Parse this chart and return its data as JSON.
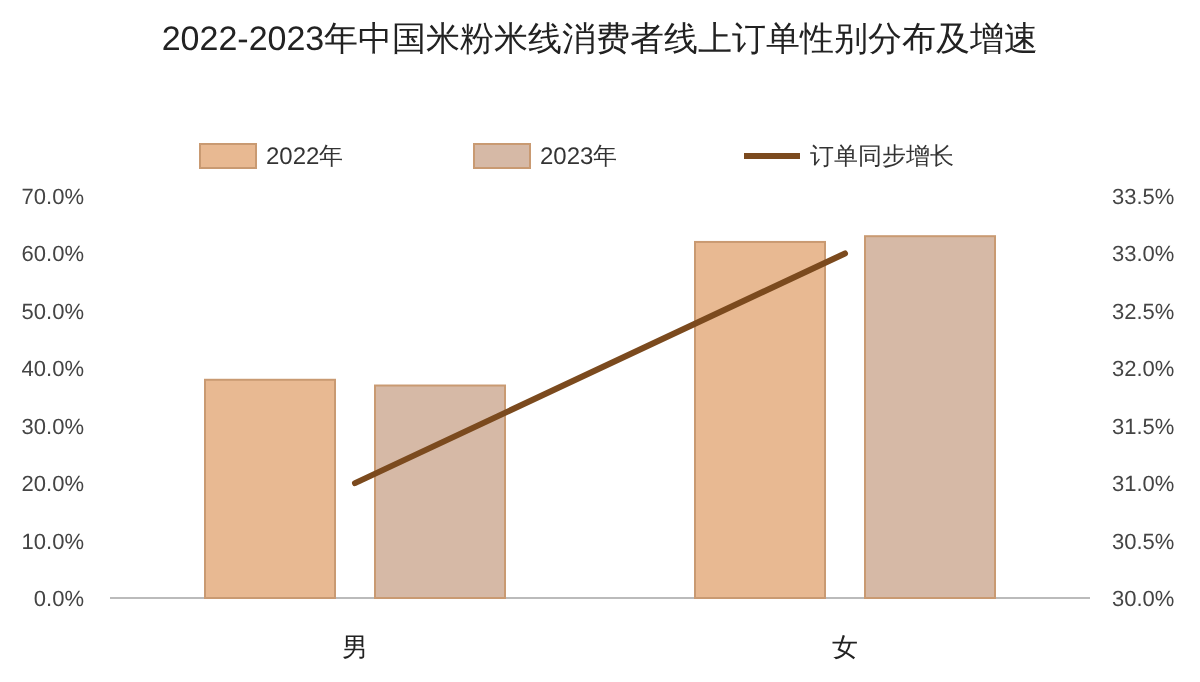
{
  "chart_data": {
    "type": "bar",
    "title": "2022-2023年中国米粉米线消费者线上订单性别分布及增速",
    "categories": [
      "男",
      "女"
    ],
    "series": [
      {
        "name": "2022年",
        "color": "#e8b992",
        "values": [
          38,
          62
        ]
      },
      {
        "name": "2023年",
        "color": "#d6b9a6",
        "values": [
          37,
          63
        ]
      },
      {
        "name": "订单同步增长",
        "type": "line",
        "axis": "y2",
        "color": "#7b4a1e",
        "values": [
          31.0,
          33.0
        ]
      }
    ],
    "ylim": [
      0,
      70
    ],
    "yticks": [
      {
        "value": 0,
        "label": "0.0%"
      },
      {
        "value": 10,
        "label": "10.0%"
      },
      {
        "value": 20,
        "label": "20.0%"
      },
      {
        "value": 30,
        "label": "30.0%"
      },
      {
        "value": 40,
        "label": "40.0%"
      },
      {
        "value": 50,
        "label": "50.0%"
      },
      {
        "value": 60,
        "label": "60.0%"
      },
      {
        "value": 70,
        "label": "70.0%"
      }
    ],
    "y2lim": [
      30,
      33.5
    ],
    "y2ticks": [
      {
        "value": 30,
        "label": "30.0%"
      },
      {
        "value": 30.5,
        "label": "30.5%"
      },
      {
        "value": 31,
        "label": "31.0%"
      },
      {
        "value": 31.5,
        "label": "31.5%"
      },
      {
        "value": 32,
        "label": "32.0%"
      },
      {
        "value": 32.5,
        "label": "32.5%"
      },
      {
        "value": 33,
        "label": "33.0%"
      },
      {
        "value": 33.5,
        "label": "33.5%"
      }
    ],
    "legend": "top"
  }
}
